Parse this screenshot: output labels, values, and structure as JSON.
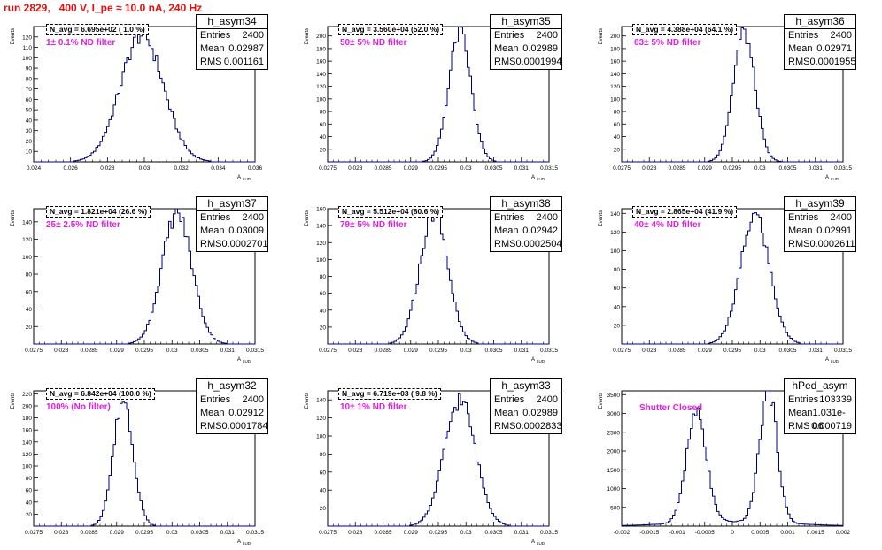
{
  "run_title": "run 2829,   400 V, I_pe ≈ 10.0 nA, 240 Hz",
  "colors": {
    "title": "#e01010",
    "line": "#00007a",
    "annotation": "#e020e0"
  },
  "stat_labels": {
    "entries": "Entries",
    "mean": "Mean",
    "rms": "RMS"
  },
  "chart_data": [
    {
      "type": "bar",
      "title": "h_asym34",
      "ylabel": "Events",
      "xlabel": "A",
      "navg": "N_avg = 6.695e+02 ( 1.0 %)",
      "filter": "1± 0.1% ND filter",
      "entries": "2400",
      "mean": "0.02987",
      "rms": "0.001161",
      "xlim": [
        0.024,
        0.036
      ],
      "ylim": [
        0,
        130
      ],
      "xticks": [
        "0.024",
        "0.026",
        "0.028",
        "0.03",
        "0.032",
        "0.034",
        "0.036"
      ],
      "yticks": [
        "10",
        "20",
        "30",
        "40",
        "50",
        "60",
        "70",
        "80",
        "90",
        "100",
        "110",
        "120"
      ],
      "mean_value": 0.02987,
      "sigma": 0.00116,
      "peak": 122
    },
    {
      "type": "bar",
      "title": "h_asym35",
      "ylabel": "Events",
      "xlabel": "A",
      "navg": "N_avg = 3.560e+04 (52.0 %)",
      "filter": "50± 5% ND filter",
      "entries": "2400",
      "mean": "0.02989",
      "rms": "0.0001994",
      "xlim": [
        0.0275,
        0.0315
      ],
      "ylim": [
        0,
        215
      ],
      "xticks": [
        "0.0275",
        "0.028",
        "0.0285",
        "0.029",
        "0.0295",
        "0.03",
        "0.0305",
        "0.031",
        "0.0315"
      ],
      "yticks": [
        "20",
        "40",
        "60",
        "80",
        "100",
        "120",
        "140",
        "160",
        "180",
        "200"
      ],
      "mean_value": 0.02989,
      "sigma": 0.0002,
      "peak": 205
    },
    {
      "type": "bar",
      "title": "h_asym36",
      "ylabel": "Events",
      "xlabel": "A",
      "navg": "N_avg = 4.388e+04 (64.1 %)",
      "filter": "63± 5% ND filter",
      "entries": "2400",
      "mean": "0.02971",
      "rms": "0.0001955",
      "xlim": [
        0.0275,
        0.0315
      ],
      "ylim": [
        0,
        215
      ],
      "xticks": [
        "0.0275",
        "0.028",
        "0.0285",
        "0.029",
        "0.0295",
        "0.03",
        "0.0305",
        "0.031",
        "0.0315"
      ],
      "yticks": [
        "20",
        "40",
        "60",
        "80",
        "100",
        "120",
        "140",
        "160",
        "180",
        "200"
      ],
      "mean_value": 0.02971,
      "sigma": 0.000196,
      "peak": 205
    },
    {
      "type": "bar",
      "title": "h_asym37",
      "ylabel": "Events",
      "xlabel": "A",
      "navg": "N_avg = 1.821e+04 (26.6 %)",
      "filter": "25± 2.5% ND filter",
      "entries": "2400",
      "mean": "0.03009",
      "rms": "0.0002701",
      "xlim": [
        0.0275,
        0.0315
      ],
      "ylim": [
        0,
        155
      ],
      "xticks": [
        "0.0275",
        "0.028",
        "0.0285",
        "0.029",
        "0.0295",
        "0.03",
        "0.0305",
        "0.031",
        "0.0315"
      ],
      "yticks": [
        "20",
        "40",
        "60",
        "80",
        "100",
        "120",
        "140"
      ],
      "mean_value": 0.03009,
      "sigma": 0.00027,
      "peak": 150
    },
    {
      "type": "bar",
      "title": "h_asym38",
      "ylabel": "Events",
      "xlabel": "A",
      "navg": "N_avg = 5.512e+04 (80.6 %)",
      "filter": "79± 5% ND filter",
      "entries": "2400",
      "mean": "0.02942",
      "rms": "0.0002504",
      "xlim": [
        0.0275,
        0.0315
      ],
      "ylim": [
        0,
        160
      ],
      "xticks": [
        "0.0275",
        "0.028",
        "0.0285",
        "0.029",
        "0.0295",
        "0.03",
        "0.0305",
        "0.031",
        "0.0315"
      ],
      "yticks": [
        "20",
        "40",
        "60",
        "80",
        "100",
        "120",
        "140",
        "160"
      ],
      "mean_value": 0.02942,
      "sigma": 0.00025,
      "peak": 155
    },
    {
      "type": "bar",
      "title": "h_asym39",
      "ylabel": "Events",
      "xlabel": "A",
      "navg": "N_avg = 2.865e+04 (41.9 %)",
      "filter": "40± 4% ND filter",
      "entries": "2400",
      "mean": "0.02991",
      "rms": "0.0002611",
      "xlim": [
        0.0275,
        0.0315
      ],
      "ylim": [
        0,
        145
      ],
      "xticks": [
        "0.0275",
        "0.028",
        "0.0285",
        "0.029",
        "0.0295",
        "0.03",
        "0.0305",
        "0.031",
        "0.0315"
      ],
      "yticks": [
        "20",
        "40",
        "60",
        "80",
        "100",
        "120",
        "140"
      ],
      "mean_value": 0.02991,
      "sigma": 0.00026,
      "peak": 138
    },
    {
      "type": "bar",
      "title": "h_asym32",
      "ylabel": "Events",
      "xlabel": "A",
      "navg": "N_avg = 6.842e+04 (100.0 %)",
      "filter": "100% (No filter)",
      "entries": "2400",
      "mean": "0.02912",
      "rms": "0.0001784",
      "xlim": [
        0.0275,
        0.0315
      ],
      "ylim": [
        0,
        225
      ],
      "xticks": [
        "0.0275",
        "0.028",
        "0.0285",
        "0.029",
        "0.0295",
        "0.03",
        "0.0305",
        "0.031",
        "0.0315"
      ],
      "yticks": [
        "20",
        "40",
        "60",
        "80",
        "100",
        "120",
        "140",
        "160",
        "180",
        "200",
        "220"
      ],
      "mean_value": 0.02912,
      "sigma": 0.000178,
      "peak": 210
    },
    {
      "type": "bar",
      "title": "h_asym33",
      "ylabel": "Events",
      "xlabel": "A",
      "navg": "N_avg = 6.719e+03 ( 9.8 %)",
      "filter": "10± 1% ND filter",
      "entries": "2400",
      "mean": "0.02989",
      "rms": "0.0002833",
      "xlim": [
        0.0275,
        0.0315
      ],
      "ylim": [
        0,
        150
      ],
      "xticks": [
        "0.0275",
        "0.028",
        "0.0285",
        "0.029",
        "0.0295",
        "0.03",
        "0.0305",
        "0.031",
        "0.0315"
      ],
      "yticks": [
        "20",
        "40",
        "60",
        "80",
        "100",
        "120",
        "140"
      ],
      "mean_value": 0.02989,
      "sigma": 0.00028,
      "peak": 140
    },
    {
      "type": "bar",
      "title": "hPed_asym",
      "ylabel": "Events",
      "xlabel": "",
      "navg": "",
      "filter": "Shutter Closed",
      "entries": "103339",
      "mean": "1.031e-06",
      "rms": "0.000719",
      "xlim": [
        -0.002,
        0.002
      ],
      "ylim": [
        0,
        3600
      ],
      "xticks": [
        "-0.002",
        "-0.0015",
        "-0.001",
        "-0.0005",
        "0",
        "0.0005",
        "0.001",
        "0.0015",
        "0.002"
      ],
      "yticks": [
        "500",
        "1000",
        "1500",
        "2000",
        "2500",
        "3000",
        "3500"
      ],
      "bimodal": [
        {
          "center": -0.00065,
          "sigma": 0.00018,
          "peak": 2900
        },
        {
          "center": 0.00065,
          "sigma": 0.00016,
          "peak": 3500
        }
      ]
    }
  ]
}
